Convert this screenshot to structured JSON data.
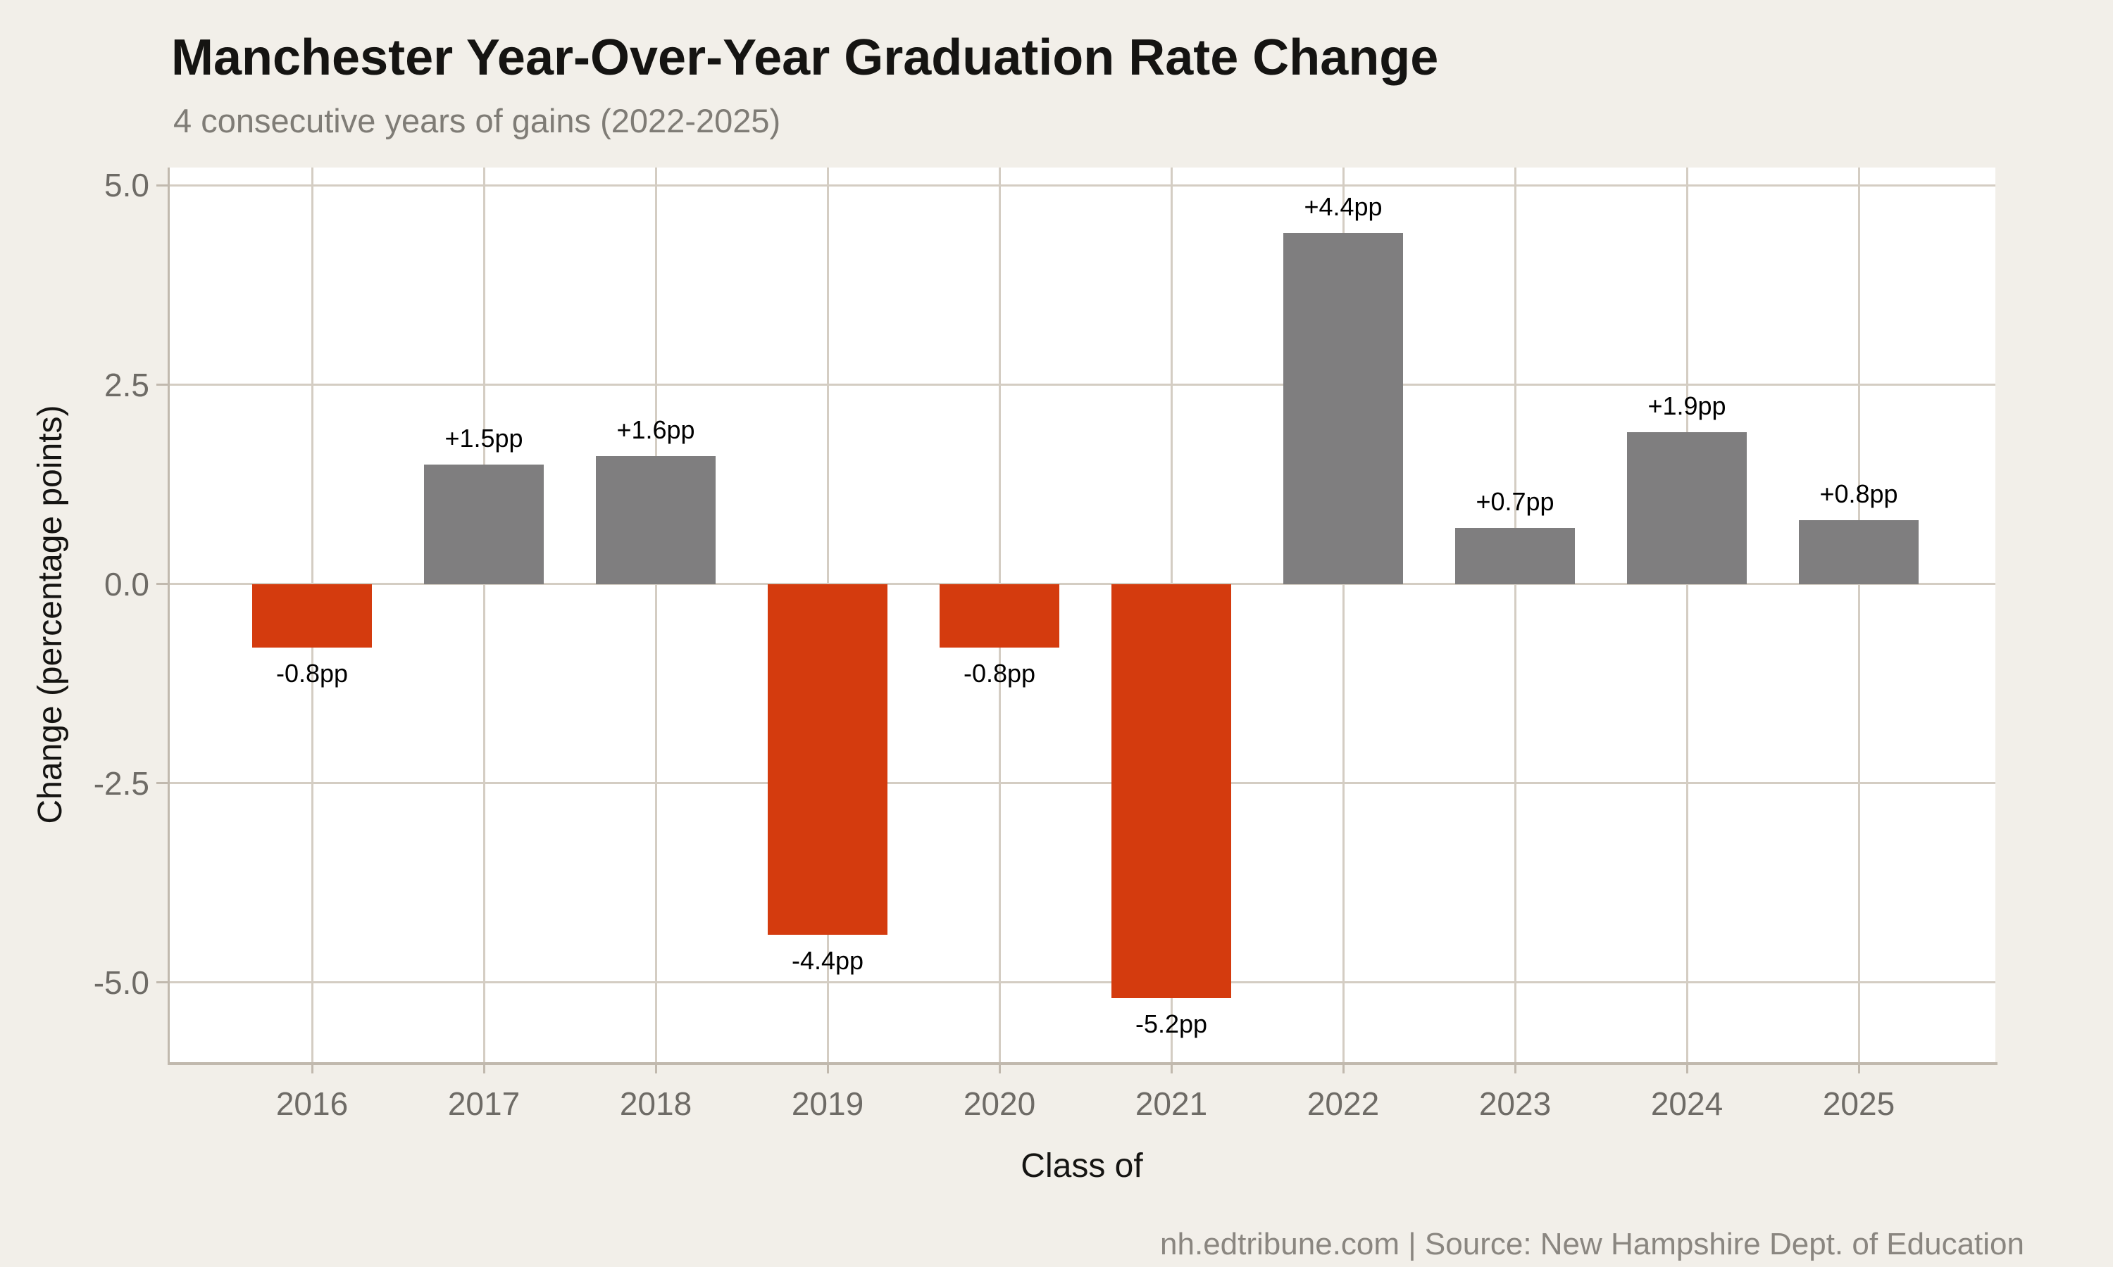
{
  "header": {
    "title": "Manchester Year-Over-Year Graduation Rate Change",
    "subtitle": "4 consecutive years of gains (2022-2025)"
  },
  "footer": {
    "text": "nh.edtribune.com | Source: New Hampshire Dept. of Education"
  },
  "chart_data": {
    "type": "bar",
    "title": "Manchester Year-Over-Year Graduation Rate Change",
    "subtitle": "4 consecutive years of gains (2022-2025)",
    "xlabel": "Class of",
    "ylabel": "Change (percentage points)",
    "categories": [
      "2016",
      "2017",
      "2018",
      "2019",
      "2020",
      "2021",
      "2022",
      "2023",
      "2024",
      "2025"
    ],
    "values": [
      -0.8,
      1.5,
      1.6,
      -4.4,
      -0.8,
      -5.2,
      4.4,
      0.7,
      1.9,
      0.8
    ],
    "bar_labels": [
      "-0.8pp",
      "+1.5pp",
      "+1.6pp",
      "-4.4pp",
      "-0.8pp",
      "-5.2pp",
      "+4.4pp",
      "+0.7pp",
      "+1.9pp",
      "+0.8pp"
    ],
    "yticks": [
      5.0,
      2.5,
      0.0,
      -2.5,
      -5.0
    ],
    "ytick_labels": [
      "5.0",
      "2.5",
      "0.0",
      "-2.5",
      "-5.0"
    ],
    "ylim": [
      -6.0,
      5.225
    ],
    "grid": true,
    "legend": "none",
    "colors": {
      "positive_bar": "#7f7e7f",
      "negative_bar": "#d43b0e",
      "background": "#f2efe9",
      "panel_background": "#ffffff",
      "gridline": "#d4cdc3",
      "axis_line": "#c1b9ae",
      "tick_label": "#6e6b66",
      "value_label": "#000000",
      "title": "#151412",
      "subtitle": "#7f7c76",
      "footer": "#8a8680"
    }
  }
}
